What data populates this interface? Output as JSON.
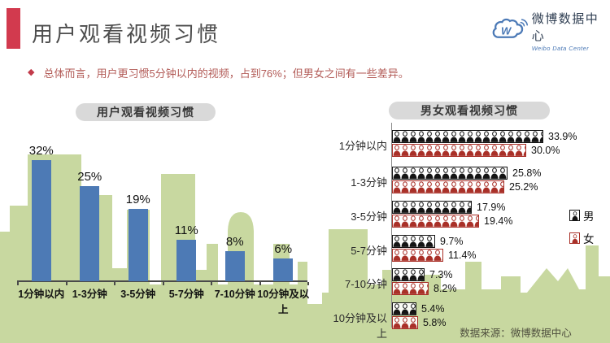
{
  "header": {
    "title": "用户观看视频习惯",
    "accent_color": "#d23a4e",
    "logo_cn": "微博数据中心",
    "logo_en": "Weibo Data Center",
    "logo_color": "#4b79b6"
  },
  "summary": {
    "bullet": "◆",
    "text": "总体而言，用户更习惯5分钟以内的视频，占到76%；但男女之间有一些差异。"
  },
  "chart_data": [
    {
      "type": "bar",
      "title": "用户观看视频习惯",
      "categories": [
        "1分钟以内",
        "1-3分钟",
        "3-5分钟",
        "5-7分钟",
        "7-10分钟",
        "10分钟及以上"
      ],
      "values": [
        32,
        25,
        19,
        11,
        8,
        6
      ],
      "labels": [
        "32%",
        "25%",
        "19%",
        "11%",
        "8%",
        "6%"
      ],
      "unit": "%",
      "bar_color": "#4d7ab5",
      "ylim": [
        0,
        35
      ],
      "grid": false,
      "legend_position": "none"
    },
    {
      "type": "pictograph-bar-horizontal",
      "title": "男女观看视频习惯",
      "categories": [
        "1分钟以内",
        "1-3分钟",
        "3-5分钟",
        "5-7分钟",
        "7-10分钟",
        "10分钟及以上"
      ],
      "series": [
        {
          "name": "男",
          "color": "#141414",
          "values": [
            33.9,
            25.8,
            17.9,
            9.7,
            7.3,
            5.4
          ],
          "labels": [
            "33.9%",
            "25.8%",
            "17.9%",
            "9.7%",
            "7.3%",
            "5.4%"
          ]
        },
        {
          "name": "女",
          "color": "#a93028",
          "values": [
            30.0,
            25.2,
            19.4,
            11.4,
            8.2,
            5.8
          ],
          "labels": [
            "30.0%",
            "25.2%",
            "19.4%",
            "11.4%",
            "8.2%",
            "5.8%"
          ]
        }
      ],
      "xlim": [
        0,
        35
      ],
      "grid": false,
      "legend_position": "right"
    }
  ],
  "footer": {
    "source": "数据来源：微博数据中心"
  },
  "colors": {
    "skyline_green": "#c8d8a0",
    "pill_bg": "#d9d9d9",
    "title_gray": "#4d4d4d"
  }
}
